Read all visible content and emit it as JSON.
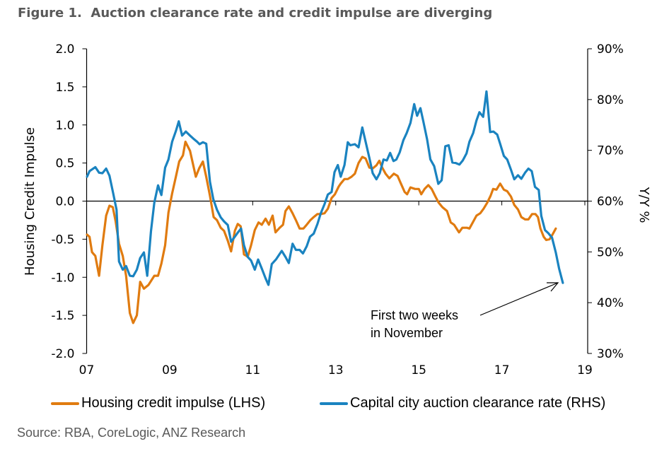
{
  "title": "Figure 1.  Auction clearance rate and credit impulse are diverging",
  "source": "Source: RBA, CoreLogic, ANZ Research",
  "chart_data": {
    "type": "line",
    "title": "Figure 1.  Auction clearance rate and credit impulse are diverging",
    "xlabel": "",
    "ylabel": "Housing Credit Impulse",
    "ylabel_right": "Y/Y %",
    "xlim": [
      2007,
      2019
    ],
    "ylim": [
      -2.0,
      2.0
    ],
    "ylim_right": [
      30,
      90
    ],
    "x_ticks": [
      "07",
      "09",
      "11",
      "13",
      "15",
      "17",
      "19"
    ],
    "y_ticks": [
      "2.0",
      "1.5",
      "1.0",
      "0.5",
      "0.0",
      "-0.5",
      "-1.0",
      "-1.5",
      "-2.0"
    ],
    "y_ticks_right": [
      "90%",
      "80%",
      "70%",
      "60%",
      "50%",
      "40%",
      "30%"
    ],
    "grid": false,
    "legend_position": "bottom",
    "annotation": {
      "lines": [
        "First two weeks",
        "in November"
      ],
      "points_to": "Capital city auction clearance rate (RHS)"
    },
    "series": [
      {
        "name": "Housing credit impulse (LHS)",
        "axis": "left",
        "color": "#E07B10",
        "x": [
          2007.01,
          2007.07,
          2007.13,
          2007.21,
          2007.3,
          2007.38,
          2007.47,
          2007.55,
          2007.63,
          2007.7,
          2007.78,
          2007.87,
          2007.95,
          2008.04,
          2008.12,
          2008.21,
          2008.29,
          2008.38,
          2008.49,
          2008.63,
          2008.72,
          2008.8,
          2008.89,
          2008.97,
          2009.06,
          2009.15,
          2009.23,
          2009.32,
          2009.38,
          2009.49,
          2009.63,
          2009.71,
          2009.8,
          2009.88,
          2009.97,
          2010.06,
          2010.14,
          2010.23,
          2010.31,
          2010.4,
          2010.48,
          2010.57,
          2010.64,
          2010.71,
          2010.79,
          2010.88,
          2010.96,
          2011.05,
          2011.14,
          2011.22,
          2011.31,
          2011.39,
          2011.48,
          2011.55,
          2011.65,
          2011.73,
          2011.79,
          2011.87,
          2011.96,
          2012.04,
          2012.13,
          2012.22,
          2012.3,
          2012.39,
          2012.47,
          2012.56,
          2012.64,
          2012.73,
          2012.81,
          2012.9,
          2012.98,
          2013.07,
          2013.12,
          2013.21,
          2013.29,
          2013.38,
          2013.46,
          2013.55,
          2013.64,
          2013.72,
          2013.81,
          2013.89,
          2013.98,
          2014.05,
          2014.12,
          2014.2,
          2014.29,
          2014.4,
          2014.49,
          2014.57,
          2014.66,
          2014.72,
          2014.8,
          2014.91,
          2015.0,
          2015.06,
          2015.14,
          2015.23,
          2015.31,
          2015.4,
          2015.48,
          2015.57,
          2015.68,
          2015.77,
          2015.85,
          2015.97,
          2016.05,
          2016.16,
          2016.22,
          2016.31,
          2016.39,
          2016.48,
          2016.56,
          2016.65,
          2016.73,
          2016.79,
          2016.87,
          2016.96,
          2017.05,
          2017.13,
          2017.22,
          2017.3,
          2017.39,
          2017.47,
          2017.56,
          2017.64,
          2017.73,
          2017.81,
          2017.87,
          2017.93,
          2018.01,
          2018.07,
          2018.15,
          2018.21,
          2018.3
        ],
        "values": [
          -0.44,
          -0.47,
          -0.67,
          -0.72,
          -0.98,
          -0.58,
          -0.19,
          -0.06,
          -0.08,
          -0.27,
          -0.56,
          -0.72,
          -0.98,
          -1.47,
          -1.6,
          -1.5,
          -1.06,
          -1.15,
          -1.1,
          -0.98,
          -0.98,
          -0.82,
          -0.58,
          -0.15,
          0.1,
          0.32,
          0.52,
          0.6,
          0.78,
          0.66,
          0.32,
          0.43,
          0.52,
          0.32,
          0.07,
          -0.21,
          -0.25,
          -0.35,
          -0.39,
          -0.52,
          -0.66,
          -0.39,
          -0.3,
          -0.33,
          -0.7,
          -0.73,
          -0.58,
          -0.38,
          -0.28,
          -0.31,
          -0.23,
          -0.31,
          -0.19,
          -0.41,
          -0.35,
          -0.31,
          -0.13,
          -0.07,
          -0.16,
          -0.25,
          -0.36,
          -0.36,
          -0.31,
          -0.25,
          -0.21,
          -0.17,
          -0.17,
          -0.16,
          -0.1,
          0.04,
          0.09,
          0.19,
          0.23,
          0.29,
          0.29,
          0.32,
          0.36,
          0.5,
          0.58,
          0.56,
          0.44,
          0.43,
          0.47,
          0.53,
          0.44,
          0.36,
          0.3,
          0.36,
          0.33,
          0.23,
          0.12,
          0.09,
          0.18,
          0.16,
          0.16,
          0.09,
          0.16,
          0.21,
          0.16,
          0.06,
          -0.02,
          -0.08,
          -0.13,
          -0.28,
          -0.31,
          -0.41,
          -0.35,
          -0.35,
          -0.36,
          -0.27,
          -0.19,
          -0.16,
          -0.1,
          -0.02,
          0.07,
          0.16,
          0.15,
          0.23,
          0.15,
          0.13,
          0.06,
          -0.05,
          -0.11,
          -0.21,
          -0.24,
          -0.24,
          -0.17,
          -0.17,
          -0.21,
          -0.36,
          -0.47,
          -0.51,
          -0.5,
          -0.45,
          -0.36
        ]
      },
      {
        "name": "Capital city auction clearance rate (RHS)",
        "axis": "right",
        "color": "#1A83C0",
        "x": [
          2007.01,
          2007.07,
          2007.21,
          2007.3,
          2007.38,
          2007.47,
          2007.55,
          2007.64,
          2007.72,
          2007.78,
          2007.87,
          2007.95,
          2008.04,
          2008.12,
          2008.21,
          2008.29,
          2008.38,
          2008.46,
          2008.55,
          2008.63,
          2008.72,
          2008.8,
          2008.89,
          2008.97,
          2009.06,
          2009.15,
          2009.22,
          2009.3,
          2009.39,
          2009.49,
          2009.57,
          2009.66,
          2009.72,
          2009.8,
          2009.88,
          2009.97,
          2010.05,
          2010.14,
          2010.23,
          2010.31,
          2010.4,
          2010.48,
          2010.57,
          2010.65,
          2010.72,
          2010.79,
          2010.88,
          2010.96,
          2011.05,
          2011.13,
          2011.22,
          2011.31,
          2011.38,
          2011.46,
          2011.56,
          2011.7,
          2011.79,
          2011.87,
          2011.96,
          2012.04,
          2012.13,
          2012.21,
          2012.3,
          2012.38,
          2012.47,
          2012.56,
          2012.64,
          2012.73,
          2012.81,
          2012.9,
          2012.97,
          2013.05,
          2013.12,
          2013.21,
          2013.29,
          2013.35,
          2013.46,
          2013.55,
          2013.64,
          2013.72,
          2013.81,
          2013.89,
          2013.98,
          2014.06,
          2014.15,
          2014.23,
          2014.31,
          2014.39,
          2014.46,
          2014.54,
          2014.63,
          2014.71,
          2014.8,
          2014.89,
          2014.96,
          2015.04,
          2015.11,
          2015.2,
          2015.28,
          2015.37,
          2015.47,
          2015.55,
          2015.64,
          2015.72,
          2015.81,
          2015.89,
          2015.98,
          2016.06,
          2016.15,
          2016.22,
          2016.31,
          2016.39,
          2016.46,
          2016.55,
          2016.63,
          2016.72,
          2016.8,
          2016.89,
          2016.96,
          2017.05,
          2017.13,
          2017.22,
          2017.3,
          2017.39,
          2017.47,
          2017.56,
          2017.64,
          2017.72,
          2017.8,
          2017.89,
          2017.95,
          2018.04,
          2018.12,
          2018.21,
          2018.3,
          2018.38,
          2018.47
        ],
        "values": [
          64.8,
          65.9,
          66.7,
          65.6,
          65.5,
          66.4,
          65.0,
          61.5,
          58.3,
          48.1,
          46.5,
          47.2,
          45.3,
          45.2,
          46.5,
          48.8,
          49.9,
          45.3,
          54.1,
          59.7,
          63.1,
          61.2,
          66.6,
          68.2,
          71.7,
          73.8,
          75.7,
          72.9,
          73.7,
          72.9,
          72.3,
          71.7,
          71.2,
          71.6,
          71.3,
          63.8,
          60.4,
          58.3,
          56.8,
          56.0,
          55.3,
          52.0,
          53.0,
          53.9,
          54.6,
          51.3,
          49.0,
          48.3,
          46.5,
          48.5,
          46.7,
          44.8,
          43.5,
          47.6,
          48.5,
          50.2,
          49.0,
          47.8,
          51.6,
          50.4,
          50.4,
          49.7,
          51.1,
          53.0,
          53.6,
          55.5,
          57.6,
          59.4,
          61.3,
          61.8,
          65.7,
          67.1,
          64.8,
          67.1,
          71.6,
          71.0,
          71.2,
          70.6,
          74.5,
          71.7,
          68.5,
          65.5,
          64.3,
          65.5,
          68.2,
          68.0,
          69.5,
          67.9,
          68.2,
          69.6,
          72.0,
          73.4,
          75.4,
          79.1,
          76.8,
          78.3,
          75.7,
          72.2,
          68.2,
          66.9,
          63.4,
          64.1,
          70.8,
          71.0,
          67.6,
          67.5,
          67.2,
          68.0,
          69.4,
          71.7,
          73.4,
          75.9,
          77.5,
          76.6,
          81.6,
          73.6,
          73.7,
          73.1,
          71.3,
          68.9,
          68.2,
          66.2,
          64.3,
          65.1,
          64.4,
          65.6,
          66.4,
          65.9,
          62.8,
          62.2,
          57.1,
          54.3,
          53.7,
          52.8,
          49.9,
          46.7,
          43.9
        ]
      }
    ]
  }
}
